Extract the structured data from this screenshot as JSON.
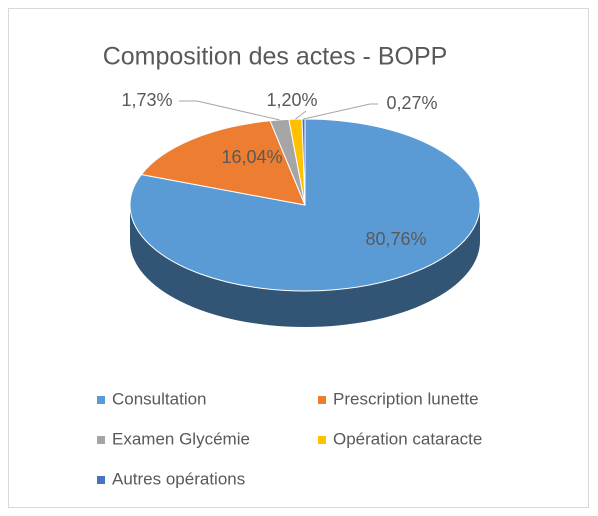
{
  "chart_data": {
    "type": "pie",
    "title": "Composition des actes - BOPP",
    "categories": [
      "Consultation",
      "Prescription lunette",
      "Examen Glycémie",
      "Opération cataracte",
      "Autres opérations"
    ],
    "values": [
      80.76,
      16.04,
      1.73,
      1.2,
      0.27
    ],
    "value_labels": [
      "80,76%",
      "16,04%",
      "1,73%",
      "1,20%",
      "0,27%"
    ],
    "colors": [
      "#5b9bd5",
      "#ed7d31",
      "#a5a5a5",
      "#ffc000",
      "#4472c4"
    ],
    "legend": "bottom"
  }
}
